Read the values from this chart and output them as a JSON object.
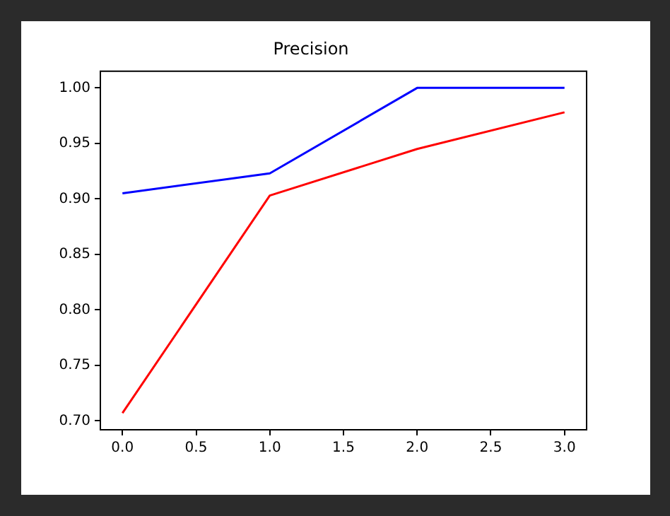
{
  "chart_data": {
    "type": "line",
    "title": "Precision",
    "x": [
      0,
      1,
      2,
      3
    ],
    "series": [
      {
        "color": "#0000ff",
        "values": [
          0.905,
          0.923,
          1.0,
          1.0
        ]
      },
      {
        "color": "#ff0000",
        "values": [
          0.707,
          0.903,
          0.945,
          0.978
        ]
      }
    ],
    "xlim": [
      -0.15,
      3.15
    ],
    "xticks": [
      {
        "value": 0,
        "label": "0.0"
      },
      {
        "value": 0.5,
        "label": "0.5"
      },
      {
        "value": 1,
        "label": "1.0"
      },
      {
        "value": 1.5,
        "label": "1.5"
      },
      {
        "value": 2,
        "label": "2.0"
      },
      {
        "value": 2.5,
        "label": "2.5"
      },
      {
        "value": 3,
        "label": "3.0"
      }
    ],
    "ylim": [
      0.692,
      1.015
    ],
    "yticks": [
      {
        "value": 0.7,
        "label": "0.70"
      },
      {
        "value": 0.75,
        "label": "0.75"
      },
      {
        "value": 0.8,
        "label": "0.80"
      },
      {
        "value": 0.85,
        "label": "0.85"
      },
      {
        "value": 0.9,
        "label": "0.90"
      },
      {
        "value": 0.95,
        "label": "0.95"
      },
      {
        "value": 1.0,
        "label": "1.00"
      }
    ],
    "grid": false,
    "legend": false
  }
}
